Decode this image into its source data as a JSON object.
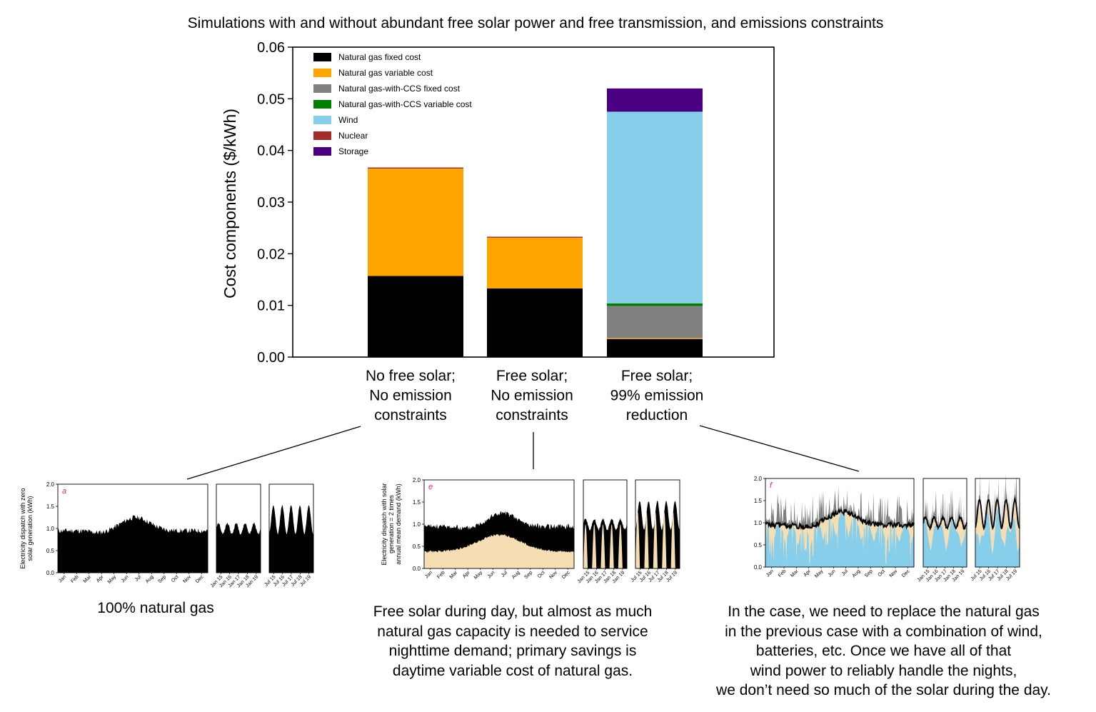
{
  "title": "Simulations with and without abundant free solar power and free transmission, and emissions constraints",
  "chart_data": {
    "type": "bar",
    "stacked": true,
    "ylabel": "Cost components ($/kWh)",
    "ylim": [
      0,
      0.06
    ],
    "yticks": [
      "0.00",
      "0.01",
      "0.02",
      "0.03",
      "0.04",
      "0.05",
      "0.06"
    ],
    "legend_position": "top-left",
    "categories": [
      [
        "No free solar;",
        "No emission",
        "constraints"
      ],
      [
        "Free solar;",
        "No emission",
        "constraints"
      ],
      [
        "Free solar;",
        "99% emission",
        "reduction"
      ]
    ],
    "series": [
      {
        "name": "Natural gas fixed cost",
        "color": "#000000",
        "values": [
          0.0157,
          0.0133,
          0.0035
        ]
      },
      {
        "name": "Natural gas variable cost",
        "color": "#ffa500",
        "values": [
          0.0208,
          0.0098,
          0.0002
        ]
      },
      {
        "name": "Natural gas-with-CCS fixed cost",
        "color": "#808080",
        "values": [
          0,
          0,
          0.0062
        ]
      },
      {
        "name": "Natural gas-with-CCS variable cost",
        "color": "#008000",
        "values": [
          0,
          0,
          0.0005
        ]
      },
      {
        "name": "Wind",
        "color": "#87ceeb",
        "values": [
          0,
          0,
          0.0371
        ]
      },
      {
        "name": "Nuclear",
        "color": "#a52a2a",
        "values": [
          0.0002,
          0.0002,
          0
        ]
      },
      {
        "name": "Storage",
        "color": "#4b0082",
        "values": [
          0,
          0,
          0.0045
        ]
      }
    ]
  },
  "panels": [
    {
      "id": "a",
      "ylabel": [
        "Electricity dispatch with zero",
        "solar generation  (kWh)"
      ],
      "yticks": [
        "0.0",
        "0.5",
        "1.0",
        "1.5",
        "2.0"
      ],
      "ylim": [
        0,
        2.0
      ],
      "months": [
        "Jan",
        "Feb",
        "Mar",
        "Apr",
        "May",
        "Jun",
        "Jul",
        "Aug",
        "Sep",
        "Oct",
        "Nov",
        "Dec"
      ],
      "jan_days": [
        "Jan 15",
        "Jan 16",
        "Jan 17",
        "Jan 18",
        "Jan 19"
      ],
      "jul_days": [
        "Jul 15",
        "Jul 16",
        "Jul 17",
        "Jul 18",
        "Jul 19"
      ]
    },
    {
      "id": "e",
      "ylabel": [
        "Electricity dispatch with solar",
        "generation = 2 times",
        "annual mean demand (kWh)"
      ],
      "yticks": [
        "0.0",
        "0.5",
        "1.0",
        "1.5",
        "2.0"
      ],
      "ylim": [
        0,
        2.0
      ],
      "months": [
        "Jan",
        "Feb",
        "Mar",
        "Apr",
        "May",
        "Jun",
        "Jul",
        "Aug",
        "Sep",
        "Oct",
        "Nov",
        "Dec"
      ],
      "jan_days": [
        "Jan 15",
        "Jan 16",
        "Jan 17",
        "Jan 18",
        "Jan 19"
      ],
      "jul_days": [
        "Jul 15",
        "Jul 16",
        "Jul 17",
        "Jul 18",
        "Jul 19"
      ]
    },
    {
      "id": "f",
      "ylabel": [],
      "yticks": [
        "0.0",
        "0.5",
        "1.0",
        "1.5",
        "2.0"
      ],
      "ylim": [
        0,
        2.0
      ],
      "months": [
        "Jan",
        "Feb",
        "Mar",
        "Apr",
        "May",
        "Jun",
        "Jul",
        "Aug",
        "Sep",
        "Oct",
        "Nov",
        "Dec"
      ],
      "jan_days": [
        "Jan 15",
        "Jan 16",
        "Jan 17",
        "Jan 18",
        "Jan 19"
      ],
      "jul_days": [
        "Jul 15",
        "Jul 16",
        "Jul 17",
        "Jul 18",
        "Jul 19"
      ]
    }
  ],
  "captions": {
    "a": [
      "100% natural gas"
    ],
    "e": [
      "Free solar during day, but almost as much",
      "natural gas capacity is needed to service",
      "nighttime demand; primary savings is",
      "daytime variable cost of natural gas."
    ],
    "f": [
      "In the case, we need to replace the natural gas",
      "in the previous case with a combination of wind,",
      "batteries, etc. Once we have all of that",
      "wind power to reliably handle the nights,",
      "we don’t need so much of the solar during the day."
    ]
  },
  "colors": {
    "panel_label": "#ff1493",
    "solar_fill": "#f5deb3",
    "gas_fill": "#000000",
    "wind_fill": "#87ceeb",
    "ccs_fill": "#808080"
  }
}
